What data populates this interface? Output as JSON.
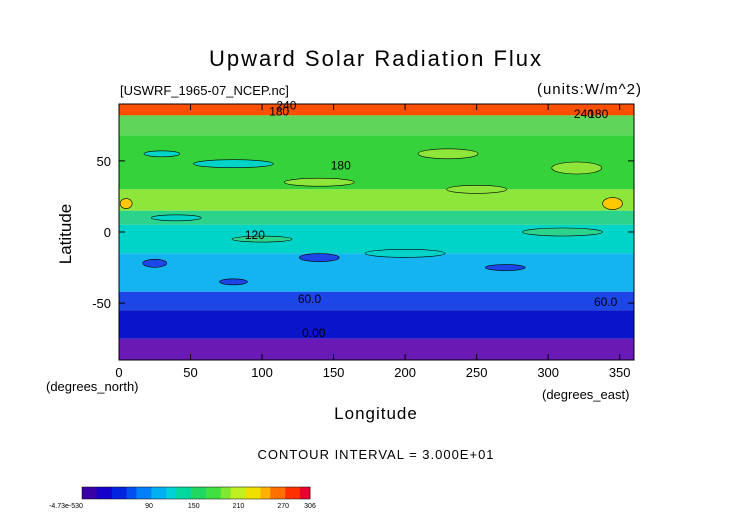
{
  "chart_data": {
    "type": "heatmap",
    "title": "Upward Solar Radiation Flux",
    "subtitle_left": "[USWRF_1965-07_NCEP.nc]",
    "subtitle_right": "(units:W/m^2)",
    "xlabel": "Longitude",
    "ylabel": "Latitude",
    "x_unit_label": "(degrees_east)",
    "y_unit_label": "(degrees_north)",
    "xlim": [
      0,
      360
    ],
    "ylim": [
      -90,
      90
    ],
    "x_ticks": [
      "0",
      "50",
      "100",
      "150",
      "200",
      "250",
      "300",
      "350"
    ],
    "y_ticks": [
      "50",
      "0",
      "-50"
    ],
    "contour_interval_text": "CONTOUR INTERVAL = 3.000E+01",
    "contour_labels": [
      "240",
      "180",
      "240",
      "180",
      "180",
      "120",
      "60.0",
      "60.0",
      "0.00"
    ],
    "colorbar_ticks": [
      "-4.73e-530",
      "90",
      "150",
      "210",
      "270",
      "306"
    ],
    "colorbar_range": [
      0,
      306
    ],
    "latitude_bands": [
      {
        "lat_top": 90,
        "lat_bottom": 82,
        "value": 270
      },
      {
        "lat_top": 82,
        "lat_bottom": 68,
        "value": 175
      },
      {
        "lat_top": 68,
        "lat_bottom": 30,
        "value": 160
      },
      {
        "lat_top": 30,
        "lat_bottom": 15,
        "value": 180
      },
      {
        "lat_top": 15,
        "lat_bottom": 5,
        "value": 145
      },
      {
        "lat_top": 5,
        "lat_bottom": -15,
        "value": 115
      },
      {
        "lat_top": -15,
        "lat_bottom": -42,
        "value": 90
      },
      {
        "lat_top": -42,
        "lat_bottom": -55,
        "value": 55
      },
      {
        "lat_top": -55,
        "lat_bottom": -75,
        "value": 25
      },
      {
        "lat_top": -75,
        "lat_bottom": -90,
        "value": 0
      }
    ],
    "colors": {
      "270": "#ff5000",
      "180": "#8ee63a",
      "175": "#5fd65a",
      "160": "#35d23c",
      "145": "#2bd48a",
      "115": "#00d4c8",
      "90": "#14b4f0",
      "55": "#1d46e6",
      "25": "#0a14c8",
      "0": "#6a1ab4"
    }
  }
}
